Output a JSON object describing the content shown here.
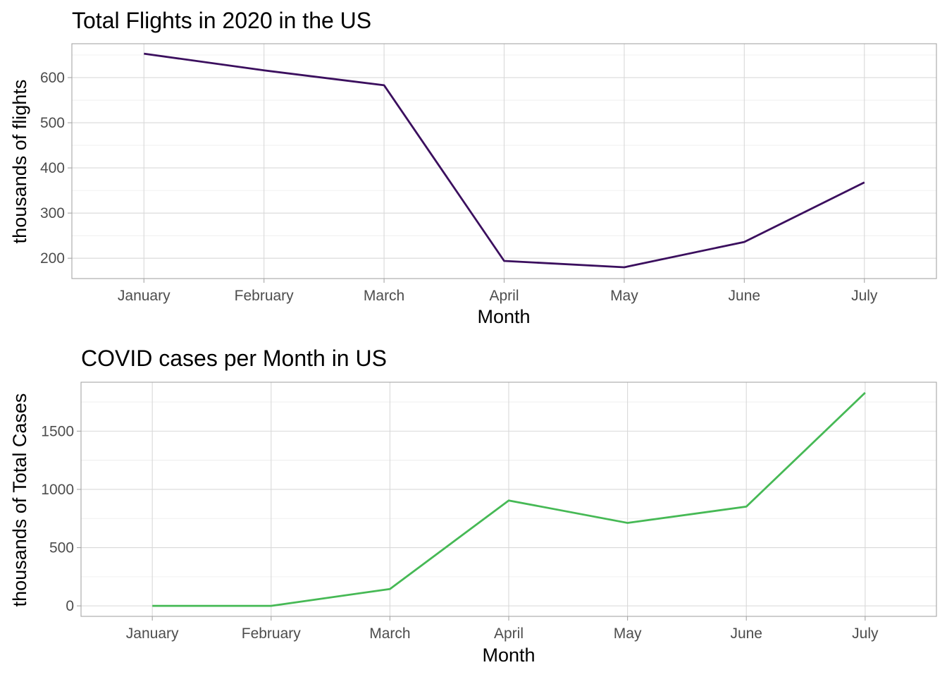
{
  "chart_data": [
    {
      "id": "flights",
      "type": "line",
      "title": "Total Flights in 2020 in the US",
      "xlabel": "Month",
      "ylabel": "thousands of flights",
      "categories": [
        "January",
        "February",
        "March",
        "April",
        "May",
        "June",
        "July"
      ],
      "series": [
        {
          "values": [
            653,
            616,
            583,
            194,
            180,
            236,
            368
          ],
          "color": "#3b0f5e"
        }
      ],
      "ylim": [
        155,
        675
      ],
      "yticks": [
        200,
        300,
        400,
        500,
        600
      ],
      "grid": true,
      "legend": "none"
    },
    {
      "id": "covid",
      "type": "line",
      "title": "COVID cases per Month in US",
      "xlabel": "Month",
      "ylabel": "thousands of Total Cases",
      "categories": [
        "January",
        "February",
        "March",
        "April",
        "May",
        "June",
        "July"
      ],
      "series": [
        {
          "values": [
            0,
            0,
            145,
            905,
            712,
            852,
            1830
          ],
          "color": "#46b955"
        }
      ],
      "ylim": [
        -90,
        1920
      ],
      "yticks": [
        0,
        500,
        1000,
        1500
      ],
      "grid": true,
      "legend": "none"
    }
  ]
}
